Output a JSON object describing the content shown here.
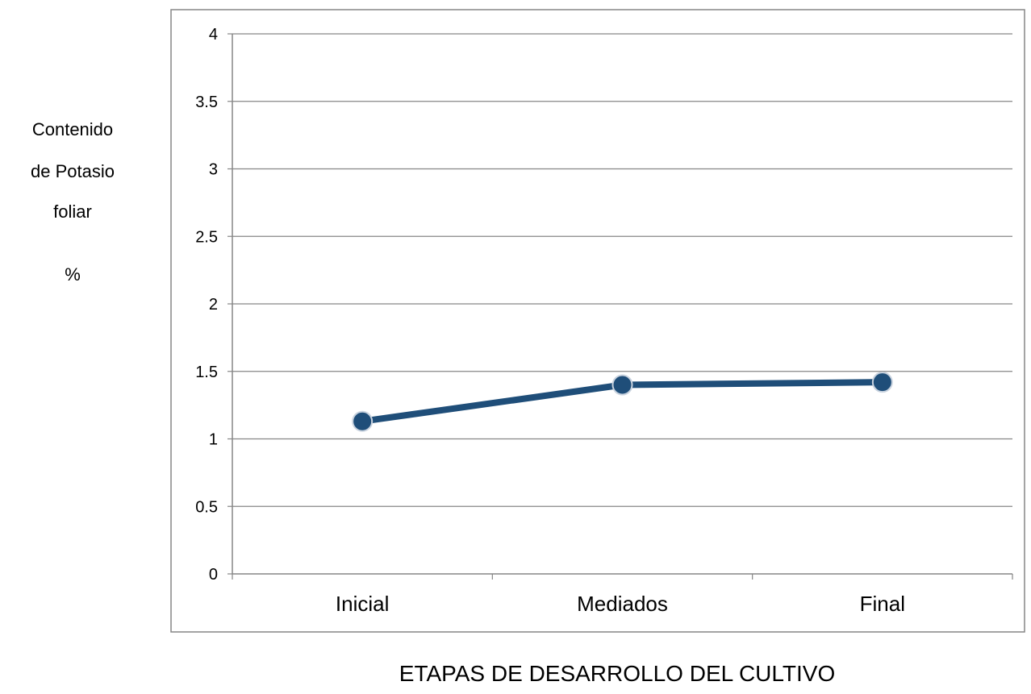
{
  "chart_data": {
    "type": "line",
    "categories": [
      "Inicial",
      "Mediados",
      "Final"
    ],
    "series": [
      {
        "values": [
          1.13,
          1.4,
          1.42
        ],
        "color": "#1f4e79"
      }
    ],
    "ylim": [
      0,
      4
    ],
    "yticks": [
      "0",
      "0.5",
      "1",
      "1.5",
      "2",
      "2.5",
      "3",
      "3.5",
      "4"
    ],
    "ylabel_lines": [
      "Contenido",
      "de Potasio",
      "foliar",
      "%"
    ],
    "xlabel": "ETAPAS DE DESARROLLO DEL CULTIVO",
    "grid": true,
    "legend": "none"
  }
}
